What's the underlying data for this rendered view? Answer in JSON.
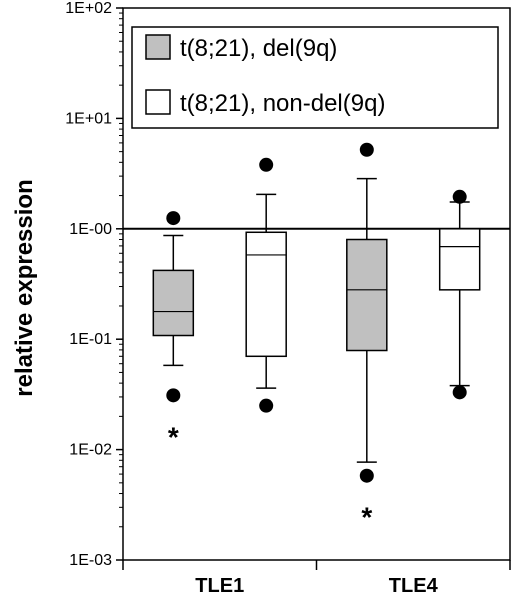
{
  "chart_data": {
    "type": "box",
    "title": "",
    "xlabel": "",
    "ylabel": "relative expression",
    "yscale": "log",
    "ylim": [
      0.001,
      100
    ],
    "yticks": [
      100,
      10,
      1,
      0.1,
      0.01,
      0.001
    ],
    "ytick_labels": [
      "1E+02",
      "1E+01",
      "1E-00",
      "1E-01",
      "1E-02",
      "1E-03"
    ],
    "categories": [
      "TLE1",
      "TLE4"
    ],
    "reference_line": 1,
    "legend_position": "top-right",
    "colors": {
      "del": "#c0c0c0",
      "nondel": "#ffffff",
      "stroke": "#000000"
    },
    "series": [
      {
        "name": "t(8;21), del(9q)",
        "boxes": [
          {
            "category": "TLE1",
            "whisker_low": 0.058,
            "q1": 0.108,
            "median": 0.178,
            "q3": 0.42,
            "whisker_high": 0.87,
            "outliers": [
              1.25,
              0.031
            ],
            "marker": "*"
          },
          {
            "category": "TLE4",
            "whisker_low": 0.0077,
            "q1": 0.079,
            "median": 0.28,
            "q3": 0.8,
            "whisker_high": 2.85,
            "outliers": [
              5.2,
              0.0058
            ],
            "marker": "*"
          }
        ]
      },
      {
        "name": "t(8;21), non-del(9q)",
        "boxes": [
          {
            "category": "TLE1",
            "whisker_low": 0.036,
            "q1": 0.07,
            "median": 0.58,
            "q3": 0.93,
            "whisker_high": 2.05,
            "outliers": [
              3.8,
              0.025
            ],
            "marker": ""
          },
          {
            "category": "TLE4",
            "whisker_low": 0.038,
            "q1": 0.28,
            "median": 0.69,
            "q3": 1.0,
            "whisker_high": 1.75,
            "outliers": [
              1.95,
              0.033
            ],
            "marker": ""
          }
        ]
      }
    ]
  }
}
